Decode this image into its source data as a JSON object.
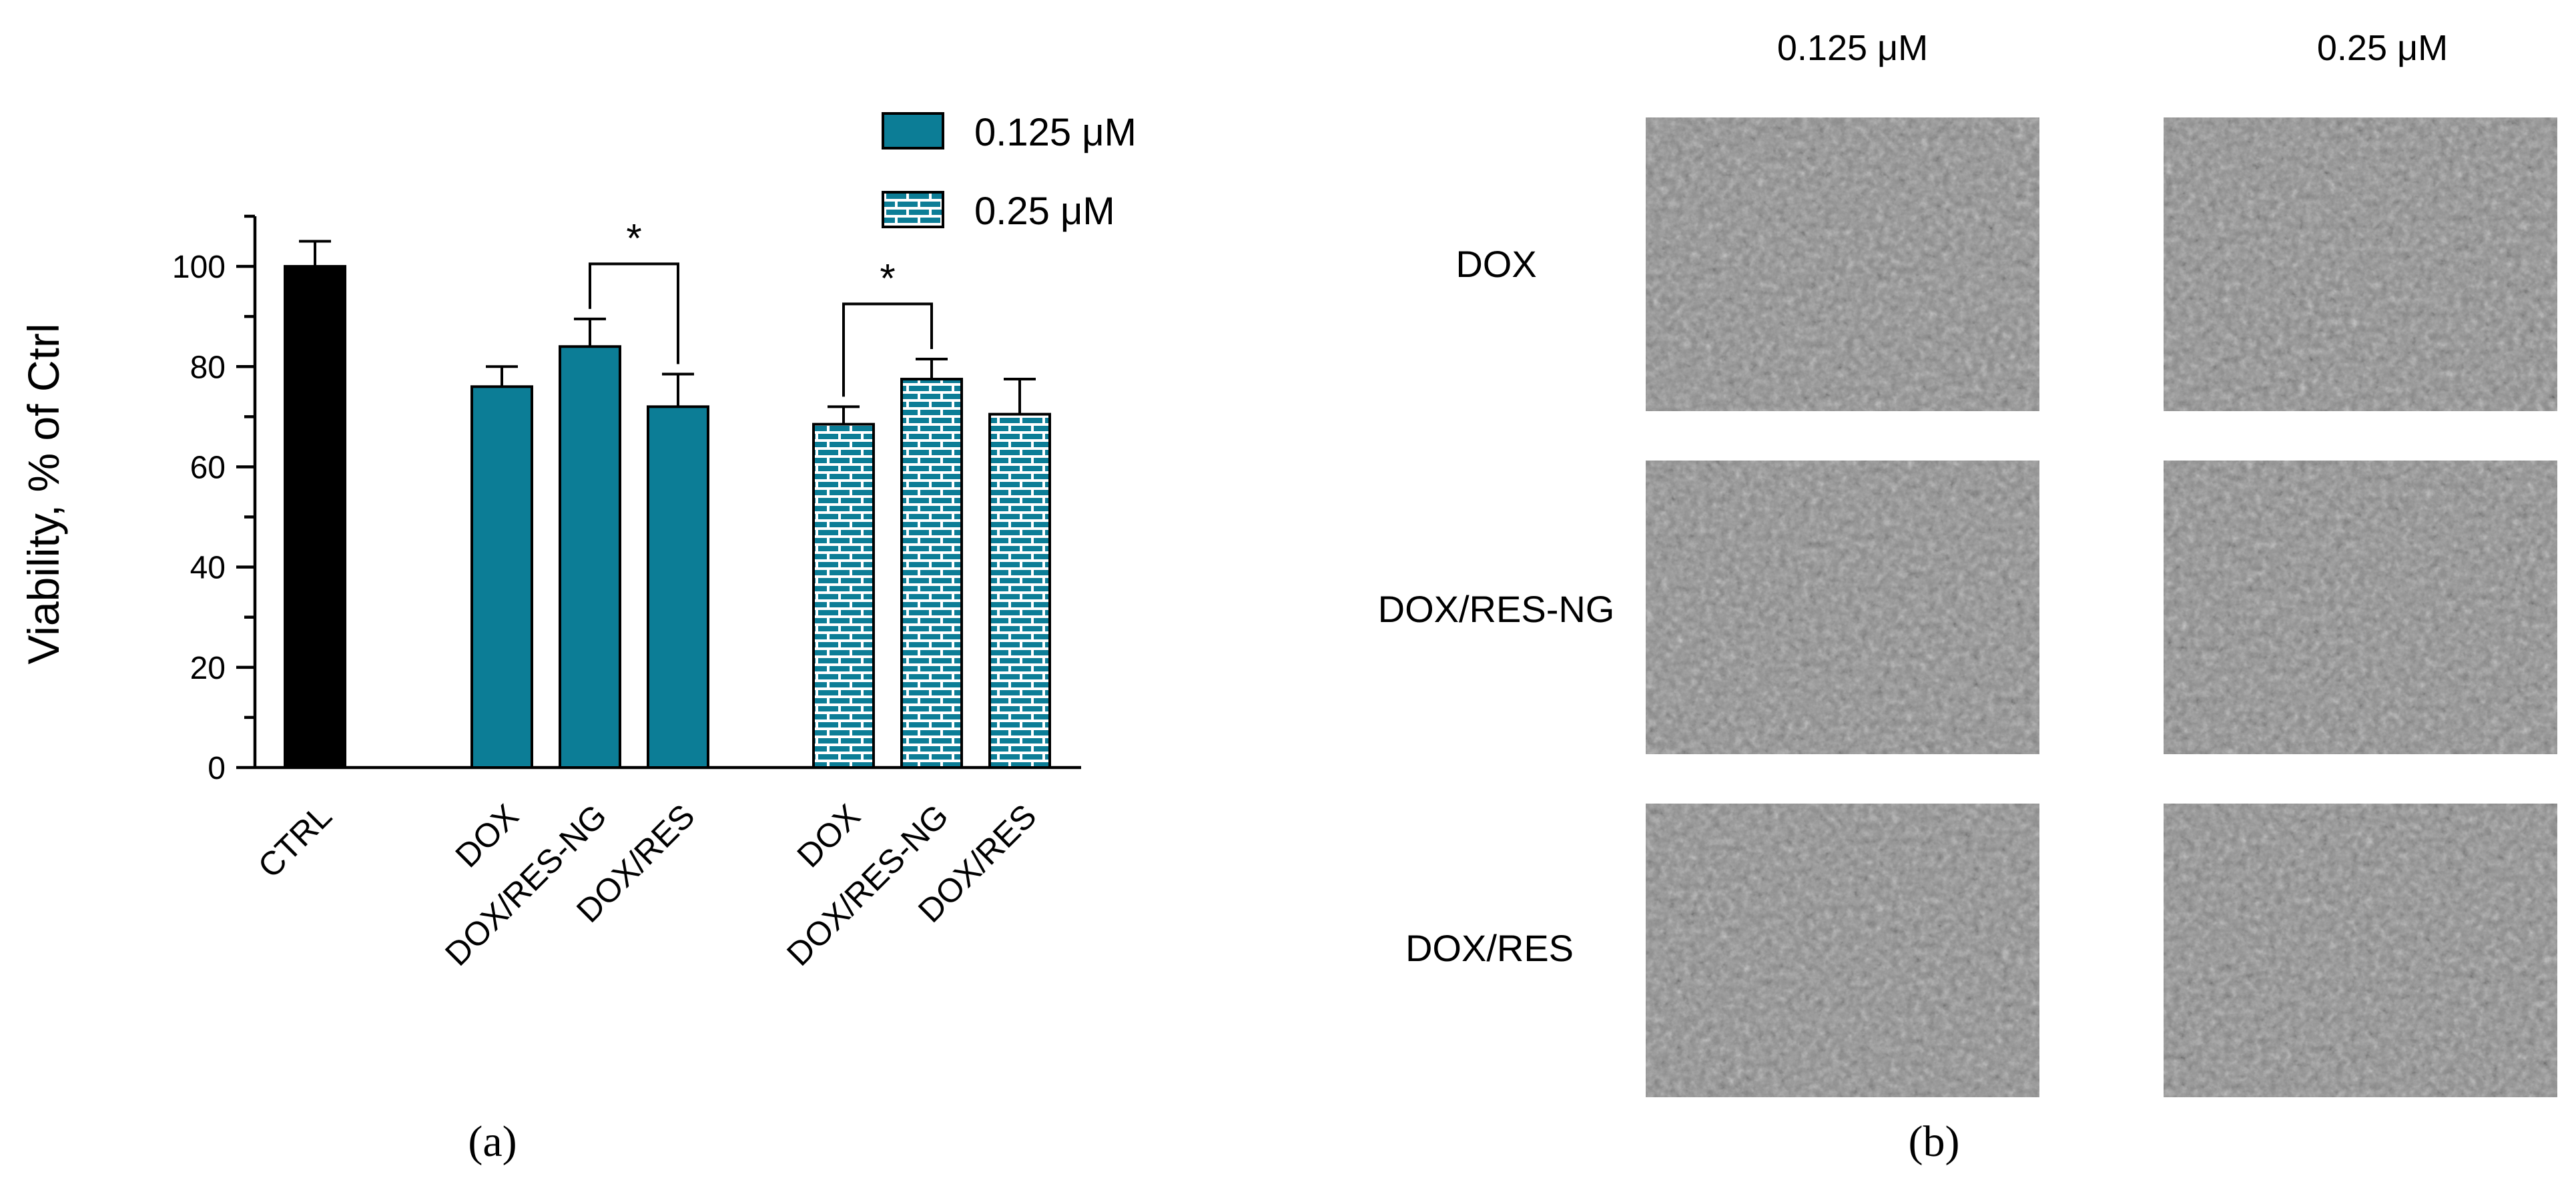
{
  "chart_data": {
    "type": "bar",
    "ylabel": "Viability, % of Ctrl",
    "ylim": [
      0,
      110
    ],
    "yticks": [
      "0",
      "20",
      "40",
      "60",
      "80",
      "100"
    ],
    "categories": [
      "CTRL",
      "DOX",
      "DOX/RES-NG",
      "DOX/RES",
      "DOX",
      "DOX/RES-NG",
      "DOX/RES"
    ],
    "values": [
      100,
      76,
      84,
      72,
      68.5,
      77.5,
      70.5
    ],
    "errors": [
      5,
      4,
      5.5,
      6.5,
      3.5,
      4,
      7
    ],
    "groups": [
      "control",
      "0.125 μM",
      "0.125 μM",
      "0.125 μM",
      "0.25 μM",
      "0.25 μM",
      "0.25 μM"
    ],
    "legend": [
      "0.125 μM",
      "0.25 μM"
    ],
    "legend_position": "top-right",
    "significance": [
      {
        "between": [
          2,
          3
        ],
        "label": "*"
      },
      {
        "between": [
          4,
          5
        ],
        "label": "*"
      }
    ],
    "colors": {
      "control": "#000000",
      "solid": "#0c7d96",
      "hatched": "#0c7d96"
    }
  },
  "panels": {
    "a_label": "(a)",
    "b_label": "(b)"
  },
  "micrographs": {
    "columns": [
      "0.125 μM",
      "0.25 μM"
    ],
    "rows": [
      "DOX",
      "DOX/RES-NG",
      "DOX/RES"
    ]
  }
}
